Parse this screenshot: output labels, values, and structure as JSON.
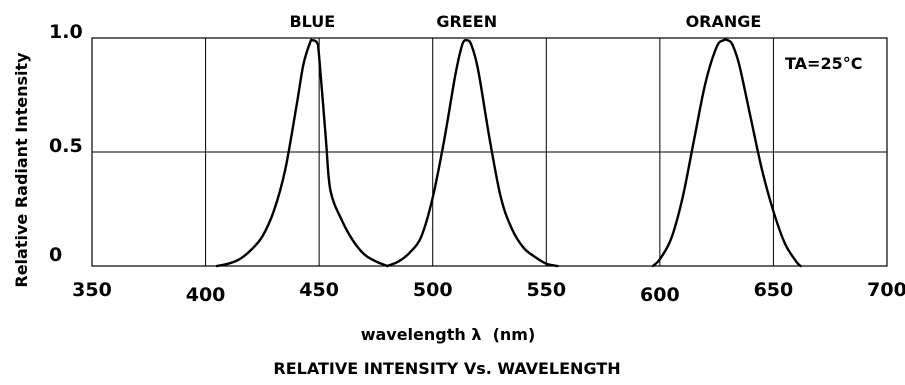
{
  "chart_data": {
    "type": "line",
    "title": "RELATIVE INTENSITY Vs. WAVELENGTH",
    "xlabel": "wavelength λ  (nm)",
    "ylabel": "Relative Radiant Intensity",
    "xlim": [
      350,
      700
    ],
    "ylim": [
      0,
      1.0
    ],
    "x_ticks": [
      {
        "value": 350,
        "label": "350"
      },
      {
        "value": 400,
        "label": "400"
      },
      {
        "value": 450,
        "label": "450"
      },
      {
        "value": 500,
        "label": "500"
      },
      {
        "value": 550,
        "label": "550"
      },
      {
        "value": 600,
        "label": "600"
      },
      {
        "value": 650,
        "label": "650"
      },
      {
        "value": 700,
        "label": "700"
      }
    ],
    "y_ticks": [
      {
        "value": 0,
        "label": "0"
      },
      {
        "value": 0.5,
        "label": "0.5"
      },
      {
        "value": 1.0,
        "label": "1.0"
      }
    ],
    "grid": true,
    "annotation": "TA=25°C",
    "series": [
      {
        "name": "BLUE",
        "x": [
          405,
          410,
          415,
          420,
          425,
          430,
          435,
          440,
          443,
          446,
          447,
          449,
          450,
          453,
          455,
          460,
          465,
          470,
          475,
          480
        ],
        "y": [
          0.0,
          0.01,
          0.03,
          0.07,
          0.13,
          0.24,
          0.42,
          0.7,
          0.88,
          0.98,
          0.99,
          0.98,
          0.92,
          0.55,
          0.33,
          0.2,
          0.11,
          0.05,
          0.02,
          0.0
        ]
      },
      {
        "name": "GREEN",
        "x": [
          480,
          485,
          490,
          495,
          500,
          505,
          510,
          513,
          515,
          517,
          520,
          525,
          530,
          535,
          540,
          545,
          550,
          555
        ],
        "y": [
          0.0,
          0.02,
          0.06,
          0.13,
          0.3,
          0.55,
          0.84,
          0.97,
          0.99,
          0.97,
          0.86,
          0.56,
          0.3,
          0.16,
          0.08,
          0.04,
          0.01,
          0.0
        ]
      },
      {
        "name": "ORANGE",
        "x": [
          597,
          600,
          605,
          610,
          615,
          620,
          625,
          628,
          630,
          632,
          635,
          640,
          645,
          650,
          655,
          660,
          662
        ],
        "y": [
          0.0,
          0.03,
          0.12,
          0.3,
          0.55,
          0.8,
          0.96,
          0.99,
          0.99,
          0.97,
          0.88,
          0.65,
          0.42,
          0.24,
          0.1,
          0.02,
          0.0
        ]
      }
    ]
  }
}
